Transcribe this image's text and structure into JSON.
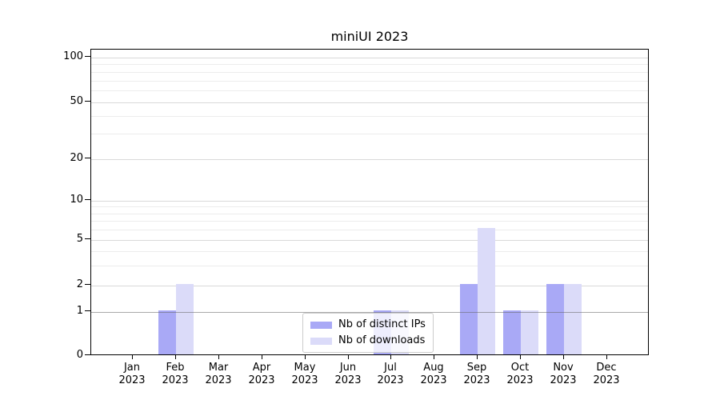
{
  "title": "miniUI 2023",
  "legend": {
    "position": "lower center",
    "items": [
      {
        "label": "Nb of distinct IPs",
        "color": "#a9a9f6"
      },
      {
        "label": "Nb of downloads",
        "color": "#dbdbf9"
      }
    ]
  },
  "y_axis": {
    "scale": "symlog",
    "tick_labels": [
      "0",
      "1",
      "2",
      "5",
      "10",
      "20",
      "50",
      "100"
    ]
  },
  "chart_data": {
    "type": "bar",
    "title": "miniUI 2023",
    "categories": [
      "Jan 2023",
      "Feb 2023",
      "Mar 2023",
      "Apr 2023",
      "May 2023",
      "Jun 2023",
      "Jul 2023",
      "Aug 2023",
      "Sep 2023",
      "Oct 2023",
      "Nov 2023",
      "Dec 2023"
    ],
    "series": [
      {
        "name": "Nb of distinct IPs",
        "color": "#a9a9f6",
        "values": [
          0,
          1,
          0,
          0,
          0,
          0,
          1,
          0,
          2,
          1,
          2,
          0
        ]
      },
      {
        "name": "Nb of downloads",
        "color": "#dbdbf9",
        "values": [
          0,
          2,
          0,
          0,
          0,
          0,
          1,
          0,
          6,
          1,
          2,
          0
        ]
      }
    ],
    "xlabel": "",
    "ylabel": "",
    "yscale": "symlog",
    "yticks": [
      0,
      1,
      2,
      5,
      10,
      20,
      50,
      100
    ],
    "yticks_minor": [
      3,
      4,
      6,
      7,
      8,
      9,
      30,
      40,
      60,
      70,
      80,
      90
    ],
    "ylim": [
      0,
      110
    ],
    "grid": true,
    "reference_line_y": 1,
    "legend_position": "lower center"
  }
}
